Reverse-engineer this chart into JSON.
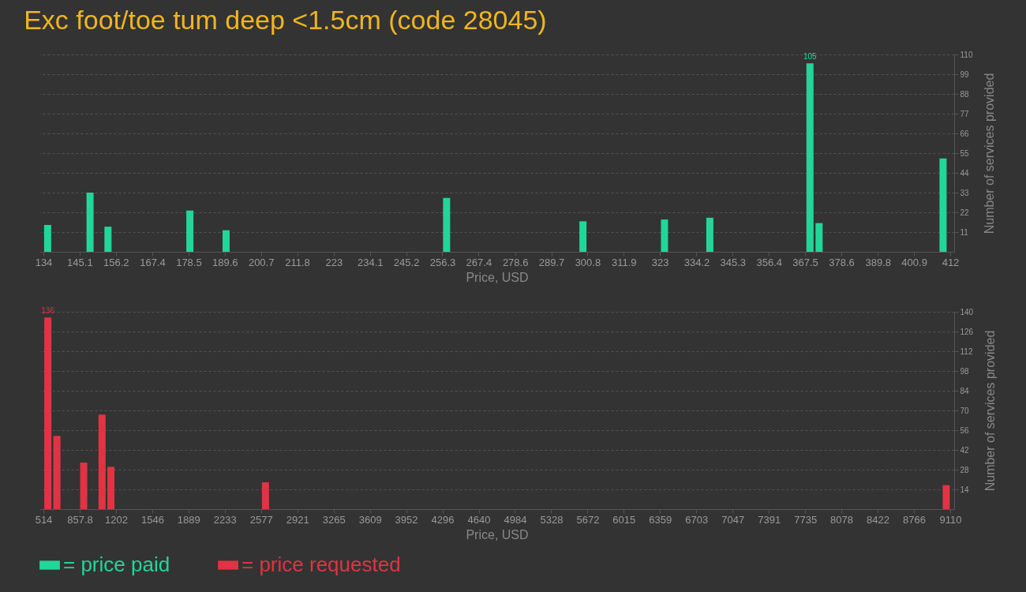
{
  "chart_data": [
    {
      "type": "bar",
      "title": "Exc foot/toe tum deep <1.5cm (code 28045)",
      "xlabel": "Price, USD",
      "ylabel": "Number of services provided",
      "x": [
        135.3,
        148.3,
        153.8,
        178.9,
        190.0,
        257.6,
        299.4,
        324.4,
        338.3,
        369.0,
        371.8,
        409.8
      ],
      "series": [
        {
          "name": "= price paid",
          "color": "#22d69a",
          "values": [
            15,
            33,
            14,
            23,
            12,
            30,
            17,
            18,
            19,
            105,
            16,
            52
          ],
          "value_labels": [
            null,
            null,
            null,
            null,
            null,
            null,
            null,
            null,
            null,
            "105",
            null,
            null
          ]
        }
      ],
      "xlim": [
        134,
        412
      ],
      "xticks": [
        134,
        145.1,
        156.2,
        167.4,
        178.5,
        189.6,
        200.7,
        211.8,
        223,
        234.1,
        245.2,
        256.3,
        267.4,
        278.6,
        289.7,
        300.8,
        311.9,
        323,
        334.2,
        345.3,
        356.4,
        367.5,
        378.6,
        389.8,
        400.9,
        412
      ],
      "ylim": [
        0,
        110
      ],
      "yticks": [
        11,
        22,
        33,
        44,
        55,
        66,
        77,
        88,
        99,
        110
      ],
      "grid": "y",
      "legend": "bottom"
    },
    {
      "type": "bar",
      "xlabel": "Price, USD",
      "ylabel": "Number of services provided",
      "x": [
        556,
        642,
        896,
        1070,
        1154,
        2619,
        9072
      ],
      "series": [
        {
          "name": "= price requested",
          "color": "#e03444",
          "values": [
            136,
            52,
            33,
            67,
            30,
            19,
            17
          ],
          "value_labels": [
            "136",
            null,
            null,
            null,
            null,
            null,
            null
          ]
        }
      ],
      "xlim": [
        514,
        9110
      ],
      "xticks": [
        514,
        857.8,
        1202,
        1546,
        1889,
        2233,
        2577,
        2921,
        3265,
        3609,
        3952,
        4296,
        4640,
        4984,
        5328,
        5672,
        6015,
        6359,
        6703,
        7047,
        7391,
        7735,
        8078,
        8422,
        8766,
        9110
      ],
      "ylim": [
        0,
        140
      ],
      "yticks": [
        14,
        28,
        42,
        56,
        70,
        84,
        98,
        112,
        126,
        140
      ],
      "grid": "y",
      "legend": "bottom"
    }
  ]
}
